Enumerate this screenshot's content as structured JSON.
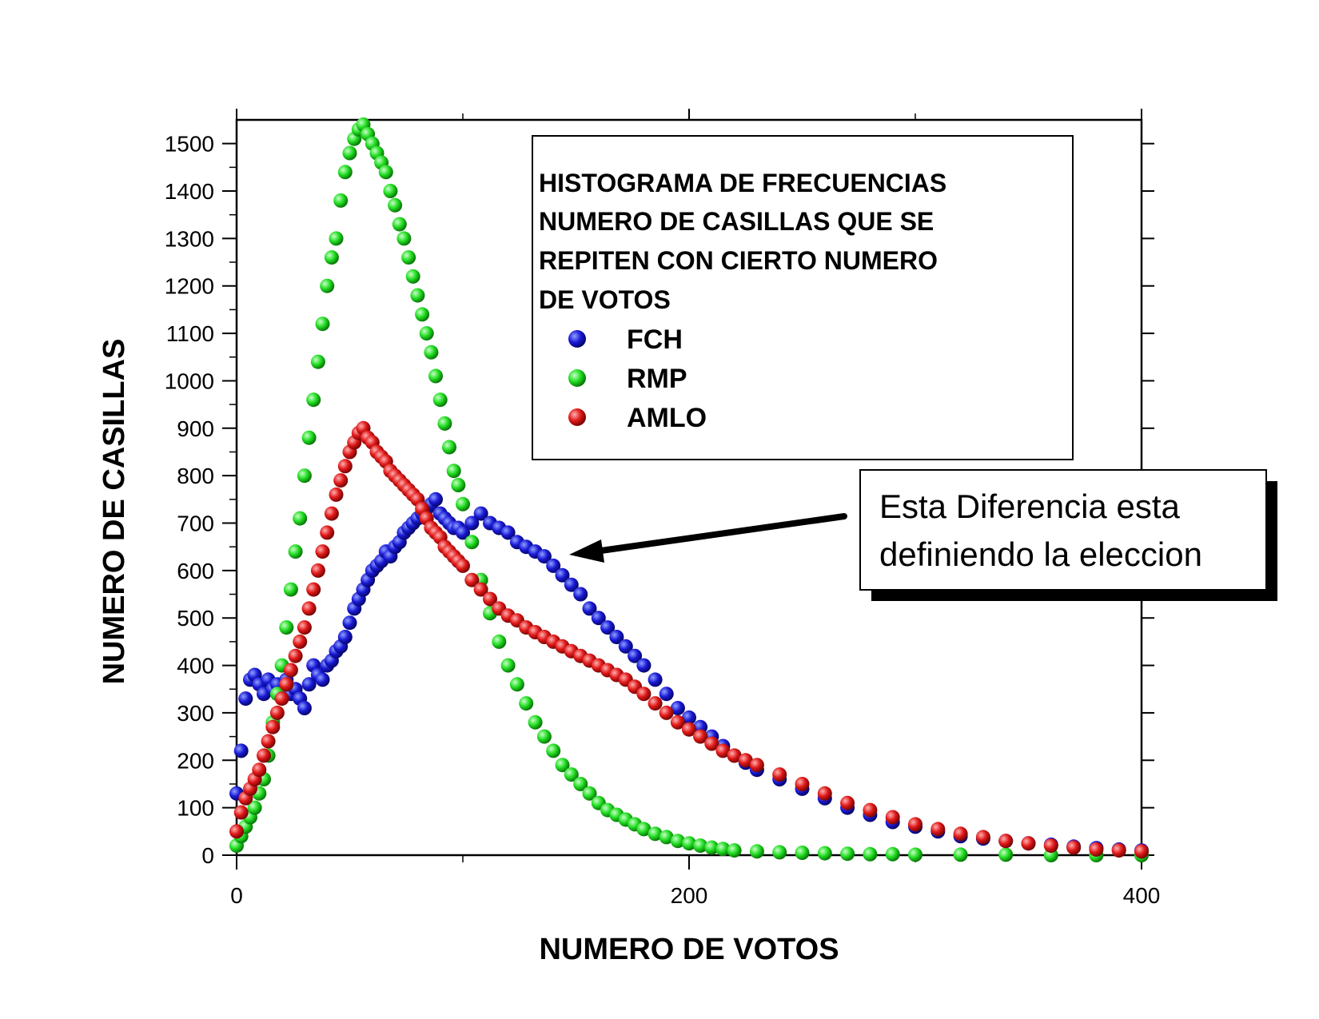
{
  "chart_data": {
    "type": "scatter",
    "title": "HISTOGRAMA DE FRECUENCIAS NUMERO DE CASILLAS QUE SE REPITEN CON CIERTO NUMERO DE VOTOS",
    "title_lines": [
      "HISTOGRAMA DE FRECUENCIAS",
      "NUMERO DE CASILLAS QUE SE",
      "REPITEN CON CIERTO NUMERO",
      "DE VOTOS"
    ],
    "xlabel": "NUMERO DE VOTOS",
    "ylabel": "NUMERO DE CASILLAS",
    "xlim": [
      0,
      400
    ],
    "ylim": [
      0,
      1550
    ],
    "xticks": [
      0,
      200,
      400
    ],
    "yticks": [
      0,
      100,
      200,
      300,
      400,
      500,
      600,
      700,
      800,
      900,
      1000,
      1100,
      1200,
      1300,
      1400,
      1500
    ],
    "grid": false,
    "legend_position": "top-right",
    "annotation": {
      "lines": [
        "Esta Diferencia esta",
        "definiendo la eleccion"
      ],
      "arrow_points_to": [
        148,
        630
      ]
    },
    "series": [
      {
        "name": "FCH",
        "color": "#1a1ad6",
        "points": [
          [
            0,
            130
          ],
          [
            2,
            220
          ],
          [
            4,
            330
          ],
          [
            6,
            370
          ],
          [
            8,
            380
          ],
          [
            10,
            360
          ],
          [
            12,
            340
          ],
          [
            14,
            370
          ],
          [
            16,
            350
          ],
          [
            18,
            360
          ],
          [
            20,
            340
          ],
          [
            22,
            370
          ],
          [
            24,
            340
          ],
          [
            26,
            350
          ],
          [
            28,
            330
          ],
          [
            30,
            310
          ],
          [
            32,
            360
          ],
          [
            34,
            400
          ],
          [
            36,
            380
          ],
          [
            38,
            370
          ],
          [
            40,
            400
          ],
          [
            42,
            410
          ],
          [
            44,
            430
          ],
          [
            46,
            440
          ],
          [
            48,
            460
          ],
          [
            50,
            490
          ],
          [
            52,
            520
          ],
          [
            54,
            540
          ],
          [
            56,
            560
          ],
          [
            58,
            580
          ],
          [
            60,
            600
          ],
          [
            62,
            610
          ],
          [
            64,
            620
          ],
          [
            66,
            640
          ],
          [
            68,
            630
          ],
          [
            70,
            650
          ],
          [
            72,
            660
          ],
          [
            74,
            680
          ],
          [
            76,
            690
          ],
          [
            78,
            700
          ],
          [
            80,
            710
          ],
          [
            82,
            720
          ],
          [
            84,
            730
          ],
          [
            86,
            740
          ],
          [
            88,
            750
          ],
          [
            90,
            720
          ],
          [
            92,
            710
          ],
          [
            94,
            700
          ],
          [
            96,
            690
          ],
          [
            98,
            690
          ],
          [
            100,
            680
          ],
          [
            104,
            700
          ],
          [
            108,
            720
          ],
          [
            112,
            700
          ],
          [
            116,
            690
          ],
          [
            120,
            680
          ],
          [
            124,
            660
          ],
          [
            128,
            650
          ],
          [
            132,
            640
          ],
          [
            136,
            630
          ],
          [
            140,
            610
          ],
          [
            144,
            590
          ],
          [
            148,
            570
          ],
          [
            152,
            550
          ],
          [
            156,
            520
          ],
          [
            160,
            500
          ],
          [
            164,
            480
          ],
          [
            168,
            460
          ],
          [
            172,
            440
          ],
          [
            176,
            420
          ],
          [
            180,
            400
          ],
          [
            185,
            370
          ],
          [
            190,
            340
          ],
          [
            195,
            310
          ],
          [
            200,
            290
          ],
          [
            205,
            270
          ],
          [
            210,
            250
          ],
          [
            215,
            230
          ],
          [
            220,
            210
          ],
          [
            225,
            195
          ],
          [
            230,
            180
          ],
          [
            240,
            160
          ],
          [
            250,
            140
          ],
          [
            260,
            120
          ],
          [
            270,
            100
          ],
          [
            280,
            85
          ],
          [
            290,
            70
          ],
          [
            300,
            60
          ],
          [
            310,
            50
          ],
          [
            320,
            40
          ],
          [
            330,
            35
          ],
          [
            340,
            30
          ],
          [
            350,
            25
          ],
          [
            360,
            22
          ],
          [
            370,
            18
          ],
          [
            380,
            15
          ],
          [
            390,
            12
          ],
          [
            400,
            10
          ]
        ]
      },
      {
        "name": "RMP",
        "color": "#22dd22",
        "points": [
          [
            0,
            20
          ],
          [
            2,
            40
          ],
          [
            4,
            60
          ],
          [
            6,
            80
          ],
          [
            8,
            100
          ],
          [
            10,
            130
          ],
          [
            12,
            160
          ],
          [
            14,
            210
          ],
          [
            16,
            280
          ],
          [
            18,
            340
          ],
          [
            20,
            400
          ],
          [
            22,
            480
          ],
          [
            24,
            560
          ],
          [
            26,
            640
          ],
          [
            28,
            710
          ],
          [
            30,
            800
          ],
          [
            32,
            880
          ],
          [
            34,
            960
          ],
          [
            36,
            1040
          ],
          [
            38,
            1120
          ],
          [
            40,
            1200
          ],
          [
            42,
            1260
          ],
          [
            44,
            1300
          ],
          [
            46,
            1380
          ],
          [
            48,
            1440
          ],
          [
            50,
            1480
          ],
          [
            52,
            1510
          ],
          [
            54,
            1530
          ],
          [
            56,
            1540
          ],
          [
            58,
            1520
          ],
          [
            60,
            1500
          ],
          [
            62,
            1480
          ],
          [
            64,
            1460
          ],
          [
            66,
            1440
          ],
          [
            68,
            1400
          ],
          [
            70,
            1370
          ],
          [
            72,
            1330
          ],
          [
            74,
            1300
          ],
          [
            76,
            1260
          ],
          [
            78,
            1220
          ],
          [
            80,
            1180
          ],
          [
            82,
            1140
          ],
          [
            84,
            1100
          ],
          [
            86,
            1060
          ],
          [
            88,
            1010
          ],
          [
            90,
            960
          ],
          [
            92,
            910
          ],
          [
            94,
            860
          ],
          [
            96,
            810
          ],
          [
            98,
            780
          ],
          [
            100,
            740
          ],
          [
            104,
            660
          ],
          [
            108,
            580
          ],
          [
            112,
            510
          ],
          [
            116,
            450
          ],
          [
            120,
            400
          ],
          [
            124,
            360
          ],
          [
            128,
            320
          ],
          [
            132,
            280
          ],
          [
            136,
            250
          ],
          [
            140,
            220
          ],
          [
            144,
            190
          ],
          [
            148,
            170
          ],
          [
            152,
            150
          ],
          [
            156,
            130
          ],
          [
            160,
            110
          ],
          [
            164,
            95
          ],
          [
            168,
            85
          ],
          [
            172,
            75
          ],
          [
            176,
            65
          ],
          [
            180,
            55
          ],
          [
            185,
            45
          ],
          [
            190,
            38
          ],
          [
            195,
            30
          ],
          [
            200,
            25
          ],
          [
            205,
            20
          ],
          [
            210,
            16
          ],
          [
            215,
            13
          ],
          [
            220,
            10
          ],
          [
            230,
            8
          ],
          [
            240,
            6
          ],
          [
            250,
            5
          ],
          [
            260,
            4
          ],
          [
            270,
            3
          ],
          [
            280,
            2
          ],
          [
            290,
            2
          ],
          [
            300,
            1
          ],
          [
            320,
            1
          ],
          [
            340,
            1
          ],
          [
            360,
            0
          ],
          [
            380,
            0
          ],
          [
            400,
            0
          ]
        ]
      },
      {
        "name": "AMLO",
        "color": "#e01818",
        "points": [
          [
            0,
            50
          ],
          [
            2,
            90
          ],
          [
            4,
            120
          ],
          [
            6,
            140
          ],
          [
            8,
            160
          ],
          [
            10,
            180
          ],
          [
            12,
            210
          ],
          [
            14,
            240
          ],
          [
            16,
            270
          ],
          [
            18,
            300
          ],
          [
            20,
            330
          ],
          [
            22,
            360
          ],
          [
            24,
            390
          ],
          [
            26,
            420
          ],
          [
            28,
            450
          ],
          [
            30,
            480
          ],
          [
            32,
            520
          ],
          [
            34,
            560
          ],
          [
            36,
            600
          ],
          [
            38,
            640
          ],
          [
            40,
            680
          ],
          [
            42,
            720
          ],
          [
            44,
            760
          ],
          [
            46,
            790
          ],
          [
            48,
            820
          ],
          [
            50,
            850
          ],
          [
            52,
            870
          ],
          [
            54,
            890
          ],
          [
            56,
            900
          ],
          [
            58,
            880
          ],
          [
            60,
            870
          ],
          [
            62,
            850
          ],
          [
            64,
            840
          ],
          [
            66,
            830
          ],
          [
            68,
            810
          ],
          [
            70,
            800
          ],
          [
            72,
            790
          ],
          [
            74,
            780
          ],
          [
            76,
            770
          ],
          [
            78,
            760
          ],
          [
            80,
            750
          ],
          [
            82,
            730
          ],
          [
            84,
            710
          ],
          [
            86,
            690
          ],
          [
            88,
            680
          ],
          [
            90,
            670
          ],
          [
            92,
            650
          ],
          [
            94,
            640
          ],
          [
            96,
            630
          ],
          [
            98,
            620
          ],
          [
            100,
            610
          ],
          [
            104,
            580
          ],
          [
            108,
            560
          ],
          [
            112,
            540
          ],
          [
            116,
            520
          ],
          [
            120,
            505
          ],
          [
            124,
            495
          ],
          [
            128,
            480
          ],
          [
            132,
            470
          ],
          [
            136,
            460
          ],
          [
            140,
            450
          ],
          [
            144,
            440
          ],
          [
            148,
            430
          ],
          [
            152,
            420
          ],
          [
            156,
            410
          ],
          [
            160,
            400
          ],
          [
            164,
            390
          ],
          [
            168,
            380
          ],
          [
            172,
            370
          ],
          [
            176,
            355
          ],
          [
            180,
            340
          ],
          [
            185,
            320
          ],
          [
            190,
            300
          ],
          [
            195,
            280
          ],
          [
            200,
            265
          ],
          [
            205,
            250
          ],
          [
            210,
            235
          ],
          [
            215,
            220
          ],
          [
            220,
            210
          ],
          [
            225,
            200
          ],
          [
            230,
            190
          ],
          [
            240,
            170
          ],
          [
            250,
            150
          ],
          [
            260,
            130
          ],
          [
            270,
            110
          ],
          [
            280,
            95
          ],
          [
            290,
            80
          ],
          [
            300,
            65
          ],
          [
            310,
            55
          ],
          [
            320,
            45
          ],
          [
            330,
            38
          ],
          [
            340,
            30
          ],
          [
            350,
            25
          ],
          [
            360,
            20
          ],
          [
            370,
            16
          ],
          [
            380,
            12
          ],
          [
            390,
            10
          ],
          [
            400,
            8
          ]
        ]
      }
    ]
  }
}
